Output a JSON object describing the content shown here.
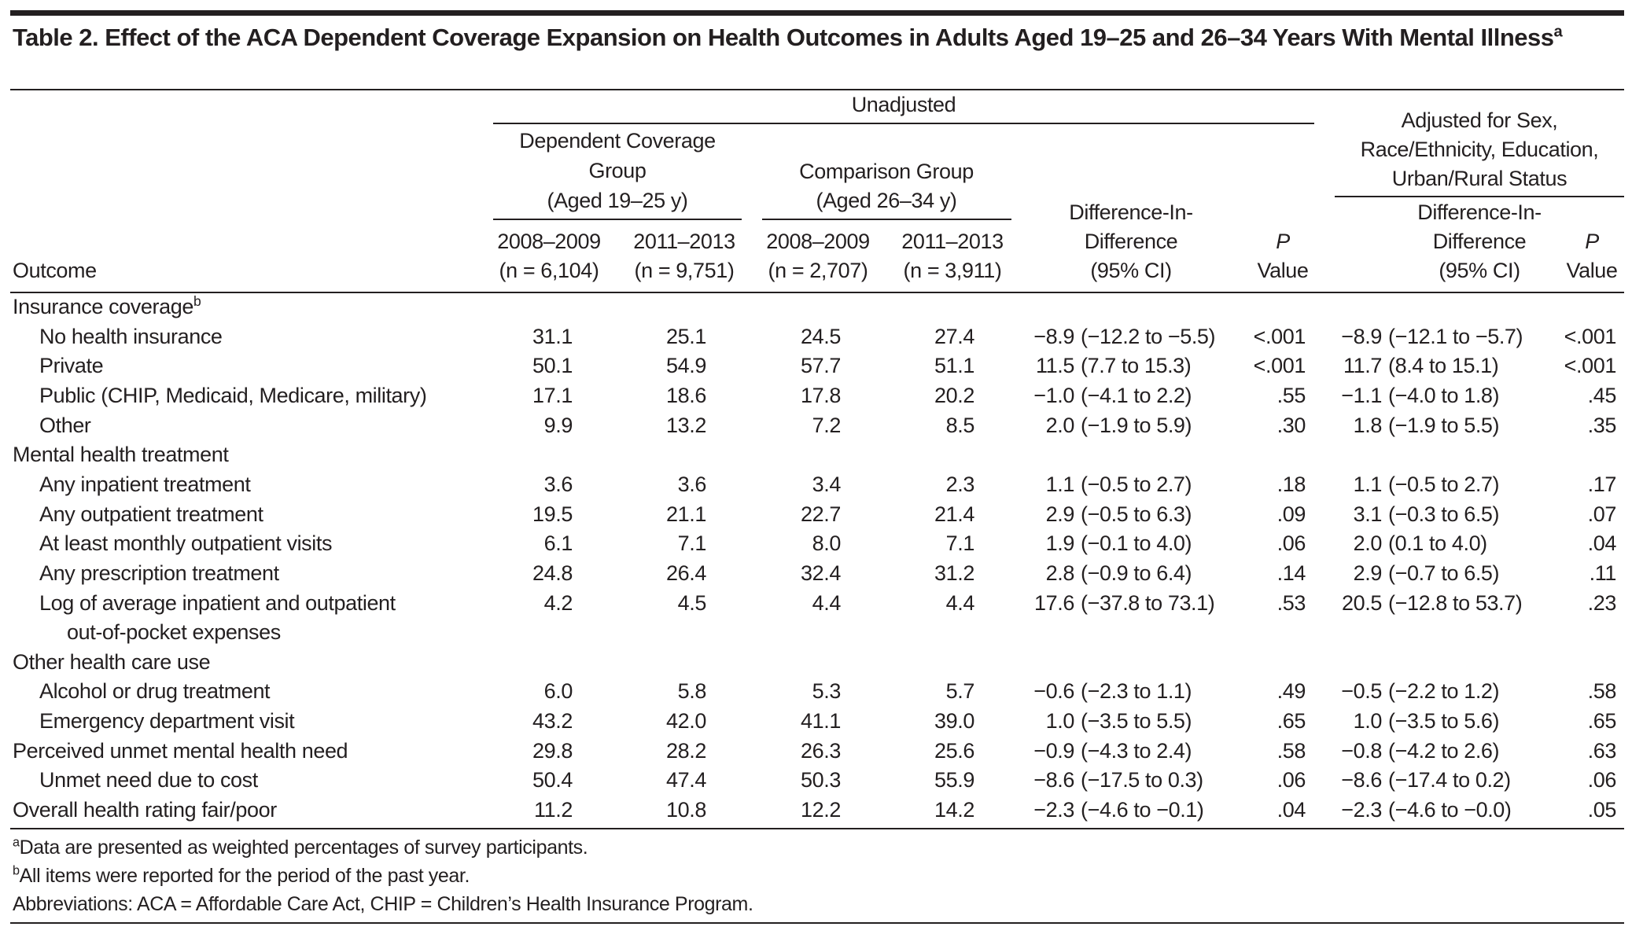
{
  "title": "Table 2. Effect of the ACA Dependent Coverage Expansion on Health Outcomes in Adults Aged 19–25 and 26–34 Years With Mental Illness",
  "title_footnote_mark": "a",
  "header": {
    "unadjusted": "Unadjusted",
    "adjusted": [
      "Adjusted for Sex,",
      "Race/Ethnicity, Education,",
      "Urban/Rural Status"
    ],
    "dependent_group": [
      "Dependent Coverage",
      "Group",
      "(Aged 19–25 y)"
    ],
    "comparison_group": [
      "Comparison Group",
      "(Aged 26–34 y)"
    ],
    "did": [
      "Difference-In-",
      "Difference",
      "(95% CI)"
    ],
    "p": [
      "P",
      "Value"
    ],
    "outcome": "Outcome",
    "years": [
      "2008–2009",
      "2011–2013",
      "2008–2009",
      "2011–2013"
    ],
    "ns": [
      "(n = 6,104)",
      "(n = 9,751)",
      "(n = 2,707)",
      "(n = 3,911)"
    ]
  },
  "rows": [
    {
      "label": "Insurance coverage",
      "sup": "b",
      "section": true
    },
    {
      "label": "No health insurance",
      "v": [
        "31.1",
        "25.1",
        "24.5",
        "27.4"
      ],
      "did": {
        "est": "−8.9",
        "ci": "(−12.2 to −5.5)"
      },
      "p": "<.001",
      "adj": {
        "est": "−8.9",
        "ci": "(−12.1 to −5.7)"
      },
      "adj_p": "<.001"
    },
    {
      "label": "Private",
      "v": [
        "50.1",
        "54.9",
        "57.7",
        "51.1"
      ],
      "did": {
        "est": "11.5",
        "ci": "(7.7 to 15.3)"
      },
      "p": "<.001",
      "adj": {
        "est": "11.7",
        "ci": "(8.4 to 15.1)"
      },
      "adj_p": "<.001"
    },
    {
      "label": "Public (CHIP, Medicaid, Medicare, military)",
      "v": [
        "17.1",
        "18.6",
        "17.8",
        "20.2"
      ],
      "did": {
        "est": "−1.0",
        "ci": "(−4.1 to 2.2)"
      },
      "p": ".55",
      "adj": {
        "est": "−1.1",
        "ci": "(−4.0 to 1.8)"
      },
      "adj_p": ".45"
    },
    {
      "label": "Other",
      "v": [
        "9.9",
        "13.2",
        "7.2",
        "8.5"
      ],
      "did": {
        "est": "2.0",
        "ci": "(−1.9 to 5.9)"
      },
      "p": ".30",
      "adj": {
        "est": "1.8",
        "ci": "(−1.9 to 5.5)"
      },
      "adj_p": ".35"
    },
    {
      "label": "Mental health treatment",
      "section": true
    },
    {
      "label": "Any inpatient treatment",
      "v": [
        "3.6",
        "3.6",
        "3.4",
        "2.3"
      ],
      "did": {
        "est": "1.1",
        "ci": "(−0.5 to 2.7)"
      },
      "p": ".18",
      "adj": {
        "est": "1.1",
        "ci": "(−0.5 to 2.7)"
      },
      "adj_p": ".17"
    },
    {
      "label": "Any outpatient treatment",
      "v": [
        "19.5",
        "21.1",
        "22.7",
        "21.4"
      ],
      "did": {
        "est": "2.9",
        "ci": "(−0.5 to 6.3)"
      },
      "p": ".09",
      "adj": {
        "est": "3.1",
        "ci": "(−0.3 to 6.5)"
      },
      "adj_p": ".07"
    },
    {
      "label": "At least monthly outpatient visits",
      "v": [
        "6.1",
        "7.1",
        "8.0",
        "7.1"
      ],
      "did": {
        "est": "1.9",
        "ci": "(−0.1 to 4.0)"
      },
      "p": ".06",
      "adj": {
        "est": "2.0",
        "ci": "(0.1 to 4.0)"
      },
      "adj_p": ".04"
    },
    {
      "label": "Any prescription treatment",
      "v": [
        "24.8",
        "26.4",
        "32.4",
        "31.2"
      ],
      "did": {
        "est": "2.8",
        "ci": "(−0.9 to 6.4)"
      },
      "p": ".14",
      "adj": {
        "est": "2.9",
        "ci": "(−0.7 to 6.5)"
      },
      "adj_p": ".11"
    },
    {
      "label": "Log of average inpatient and outpatient",
      "label2": "out-of-pocket expenses",
      "v": [
        "4.2",
        "4.5",
        "4.4",
        "4.4"
      ],
      "did": {
        "est": "17.6",
        "ci": "(−37.8 to 73.1)"
      },
      "p": ".53",
      "adj": {
        "est": "20.5",
        "ci": "(−12.8 to 53.7)"
      },
      "adj_p": ".23"
    },
    {
      "label": "Other health care use",
      "section": true
    },
    {
      "label": "Alcohol or drug treatment",
      "v": [
        "6.0",
        "5.8",
        "5.3",
        "5.7"
      ],
      "did": {
        "est": "−0.6",
        "ci": "(−2.3 to 1.1)"
      },
      "p": ".49",
      "adj": {
        "est": "−0.5",
        "ci": "(−2.2 to 1.2)"
      },
      "adj_p": ".58"
    },
    {
      "label": "Emergency department visit",
      "v": [
        "43.2",
        "42.0",
        "41.1",
        "39.0"
      ],
      "did": {
        "est": "1.0",
        "ci": "(−3.5 to 5.5)"
      },
      "p": ".65",
      "adj": {
        "est": "1.0",
        "ci": "(−3.5 to 5.6)"
      },
      "adj_p": ".65"
    },
    {
      "label": "Perceived unmet mental health need",
      "section_data": true,
      "v": [
        "29.8",
        "28.2",
        "26.3",
        "25.6"
      ],
      "did": {
        "est": "−0.9",
        "ci": "(−4.3 to 2.4)"
      },
      "p": ".58",
      "adj": {
        "est": "−0.8",
        "ci": "(−4.2 to 2.6)"
      },
      "adj_p": ".63"
    },
    {
      "label": "Unmet need due to cost",
      "v": [
        "50.4",
        "47.4",
        "50.3",
        "55.9"
      ],
      "did": {
        "est": "−8.6",
        "ci": "(−17.5 to 0.3)"
      },
      "p": ".06",
      "adj": {
        "est": "−8.6",
        "ci": "(−17.4 to 0.2)"
      },
      "adj_p": ".06"
    },
    {
      "label": "Overall health rating fair/poor",
      "section_data": true,
      "v": [
        "11.2",
        "10.8",
        "12.2",
        "14.2"
      ],
      "did": {
        "est": "−2.3",
        "ci": "(−4.6 to −0.1)"
      },
      "p": ".04",
      "adj": {
        "est": "−2.3",
        "ci": "(−4.6 to −0.0)"
      },
      "adj_p": ".05"
    }
  ],
  "footnotes": [
    {
      "mark": "a",
      "text": "Data are presented as weighted percentages of survey participants."
    },
    {
      "mark": "b",
      "text": "All items were reported for the period of the past year."
    },
    {
      "mark": "",
      "text": "Abbreviations: ACA = Affordable Care Act, CHIP = Children’s Health Insurance Program."
    }
  ]
}
